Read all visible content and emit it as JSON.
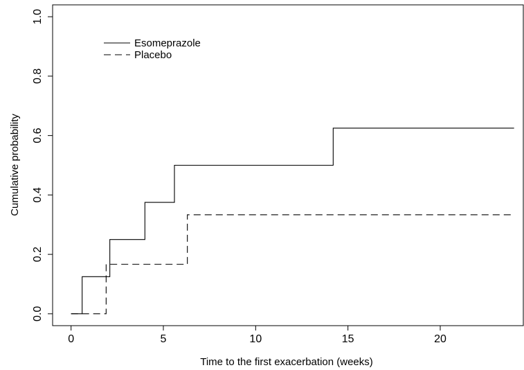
{
  "chart_data": {
    "type": "line",
    "subtype": "step",
    "title": "",
    "xlabel": "Time to the first exacerbation (weeks)",
    "ylabel": "Cumulative probability",
    "xlim": [
      -1,
      24.5
    ],
    "ylim": [
      -0.04,
      1.04
    ],
    "xticks": [
      0,
      5,
      10,
      15,
      20
    ],
    "xtick_labels": [
      "0",
      "5",
      "10",
      "15",
      "20"
    ],
    "yticks": [
      0.0,
      0.2,
      0.4,
      0.6,
      0.8,
      1.0
    ],
    "ytick_labels": [
      "0.0",
      "0.2",
      "0.4",
      "0.6",
      "0.8",
      "1.0"
    ],
    "grid": false,
    "legend_position": "top-left",
    "series": [
      {
        "name": "Esomeprazole",
        "line_style": "solid",
        "color": "#000000",
        "x": [
          0,
          0.6,
          2.1,
          4.0,
          5.6,
          14.2,
          24.0
        ],
        "y": [
          0.0,
          0.125,
          0.25,
          0.375,
          0.5,
          0.625,
          0.625
        ]
      },
      {
        "name": "Placebo",
        "line_style": "dashed",
        "color": "#000000",
        "x": [
          0,
          1.9,
          6.3,
          24.0
        ],
        "y": [
          0.0,
          0.1667,
          0.3333,
          0.3333
        ]
      }
    ]
  }
}
